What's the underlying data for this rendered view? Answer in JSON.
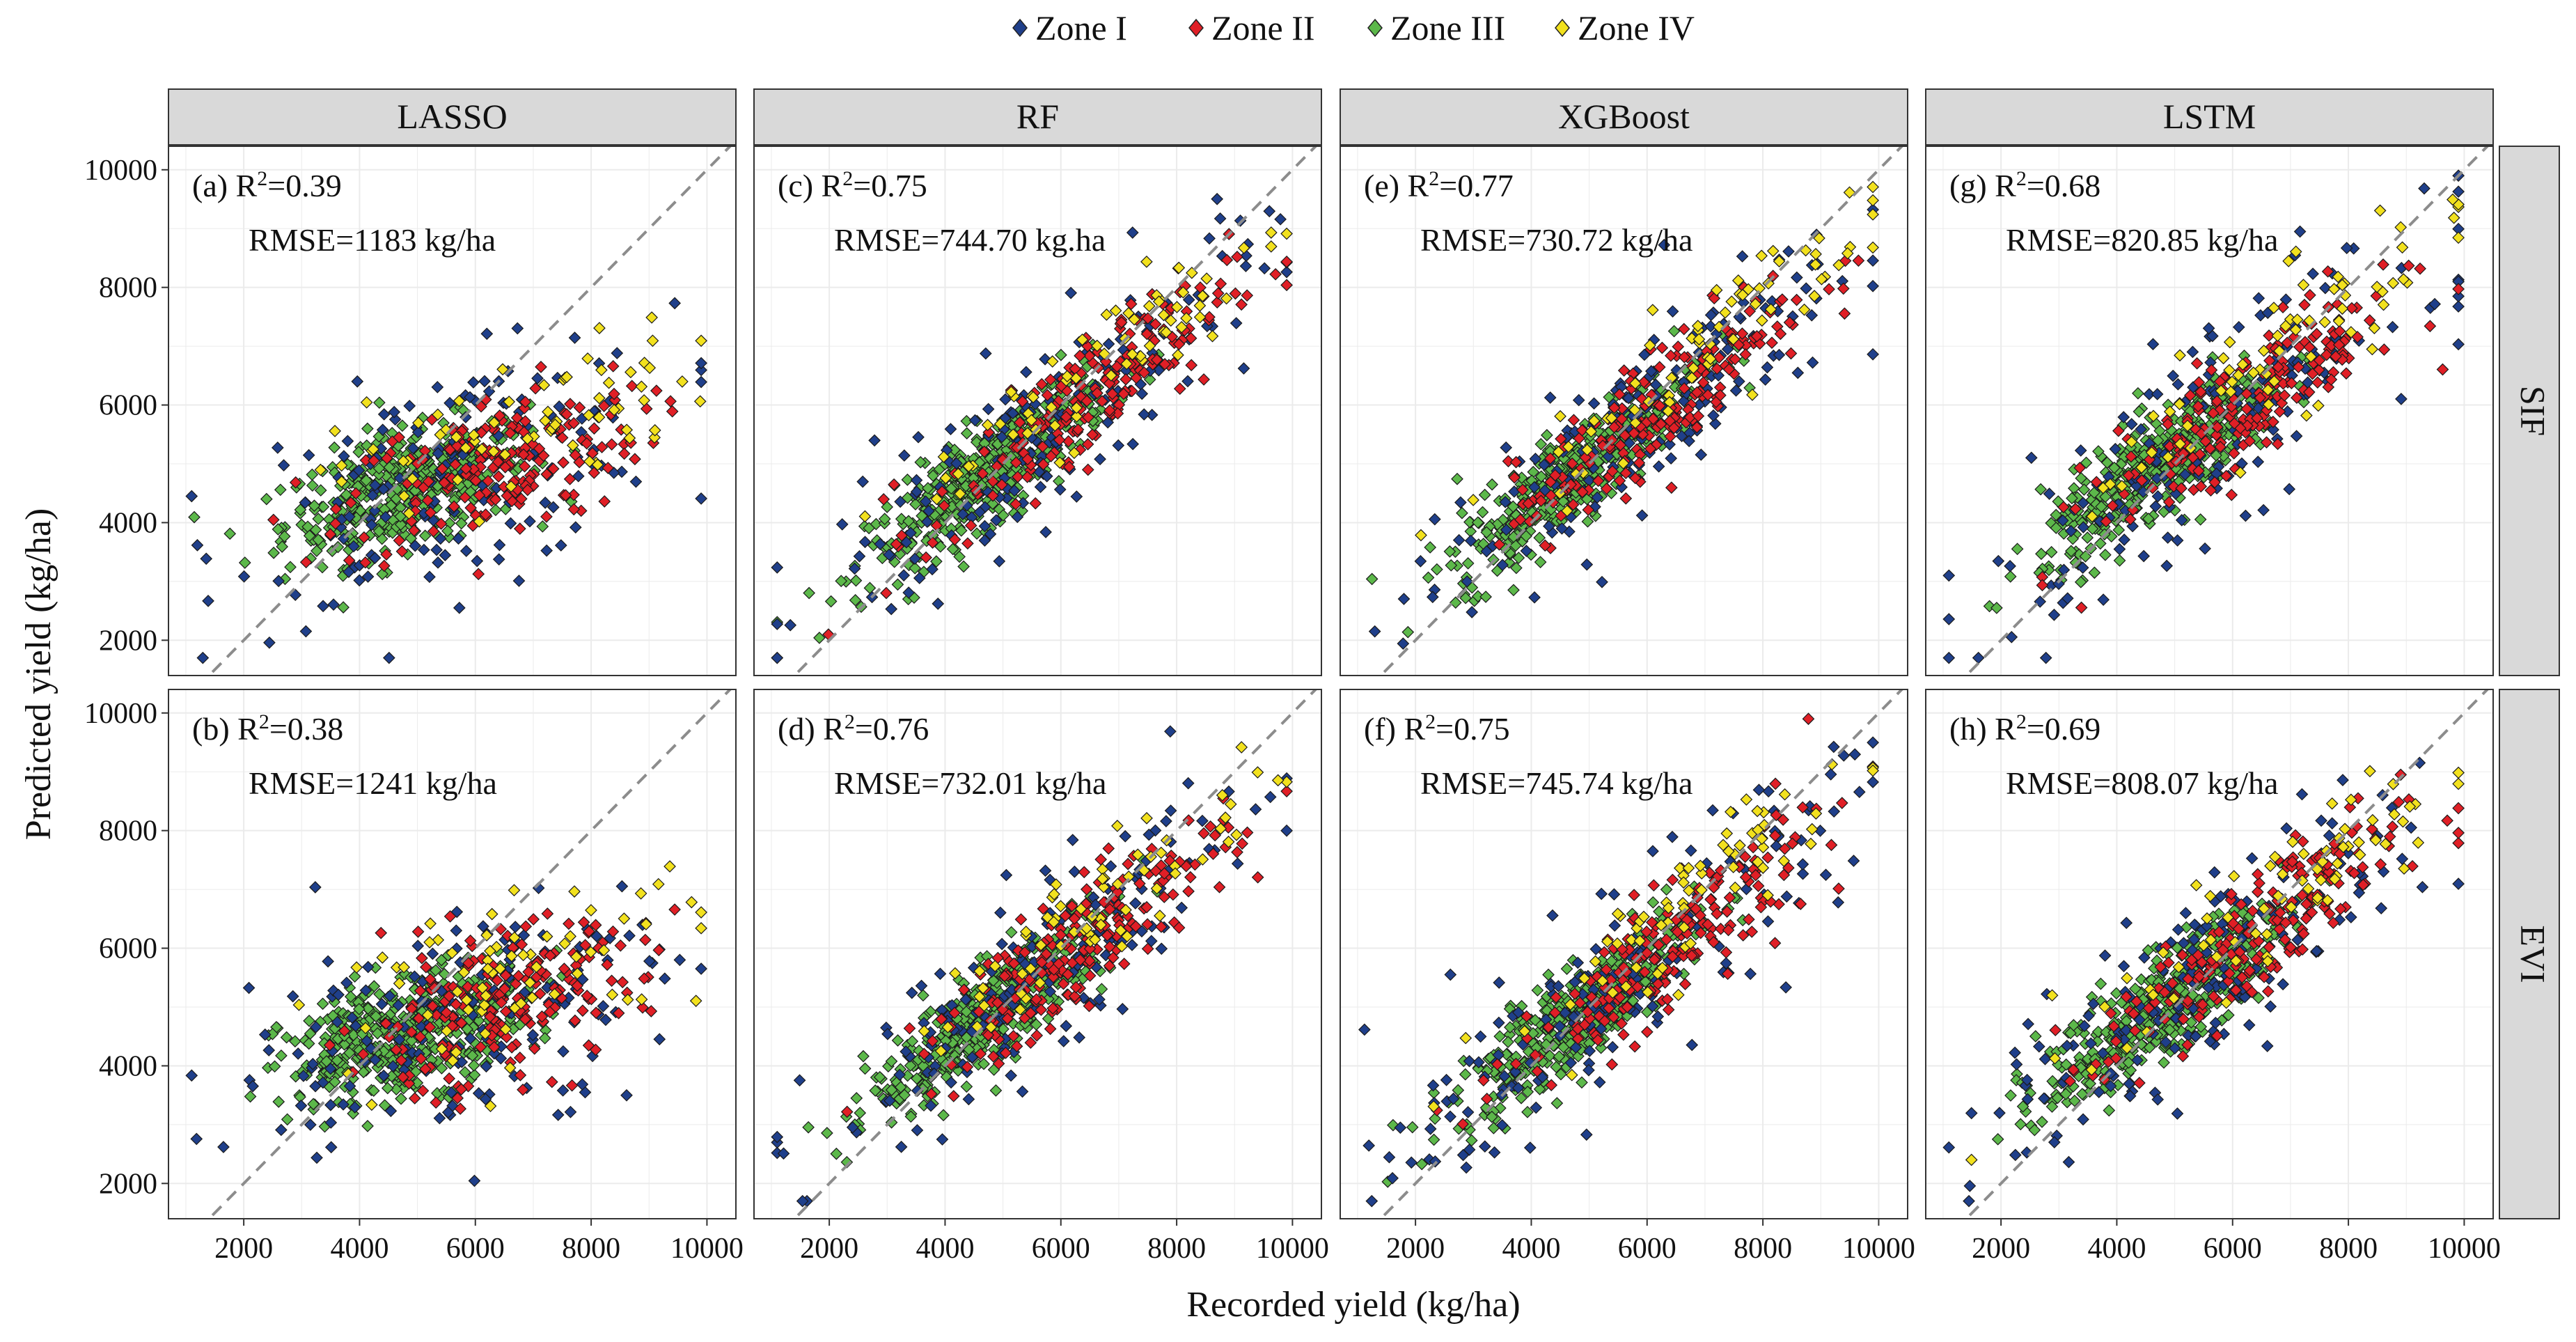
{
  "chart_data": {
    "type": "scatter",
    "legend": {
      "position": "top",
      "entries": [
        {
          "label": "Zone I",
          "color": "#1f3f8a"
        },
        {
          "label": "Zone II",
          "color": "#e01f26"
        },
        {
          "label": "Zone III",
          "color": "#5cb84a"
        },
        {
          "label": "Zone IV",
          "color": "#f2e11e"
        }
      ]
    },
    "xlabel": "Recorded  yield (kg/ha)",
    "ylabel": "Predicted yield (kg/ha)",
    "xlim": [
      700,
      10500
    ],
    "ylim": [
      1400,
      10400
    ],
    "x_ticks": [
      "2000",
      "4000",
      "6000",
      "8000",
      "10000"
    ],
    "y_ticks": [
      "2000",
      "4000",
      "6000",
      "8000",
      "10000"
    ],
    "reference_line": "1:1 dashed",
    "columns": [
      "LASSO",
      "RF",
      "XGBoost",
      "LSTM"
    ],
    "rows": [
      "SIF",
      "EVI"
    ],
    "panels": [
      {
        "id": "a",
        "model": "LASSO",
        "index": "SIF",
        "tag": "(a)",
        "r2": "0.39",
        "rmse": "RMSE=1183 kg/ha",
        "slope": 0.28,
        "intercept": 3200,
        "noise": 620
      },
      {
        "id": "c",
        "model": "RF",
        "index": "SIF",
        "tag": "(c)",
        "r2": "0.75",
        "rmse": "RMSE=744.70 kg.ha",
        "slope": 0.72,
        "intercept": 1450,
        "noise": 520
      },
      {
        "id": "e",
        "model": "XGBoost",
        "index": "SIF",
        "tag": "(e)",
        "r2": "0.77",
        "rmse": "RMSE=730.72 kg/ha",
        "slope": 0.76,
        "intercept": 1250,
        "noise": 500
      },
      {
        "id": "g",
        "model": "LSTM",
        "index": "SIF",
        "tag": "(g)",
        "r2": "0.68",
        "rmse": "RMSE=820.85 kg/ha",
        "slope": 0.68,
        "intercept": 1750,
        "noise": 560
      },
      {
        "id": "b",
        "model": "LASSO",
        "index": "EVI",
        "tag": "(b)",
        "r2": "0.38",
        "rmse": "RMSE=1241 kg/ha",
        "slope": 0.27,
        "intercept": 3250,
        "noise": 640
      },
      {
        "id": "d",
        "model": "RF",
        "index": "EVI",
        "tag": "(d)",
        "r2": "0.76",
        "rmse": "RMSE=732.01 kg/ha",
        "slope": 0.73,
        "intercept": 1400,
        "noise": 510
      },
      {
        "id": "f",
        "model": "XGBoost",
        "index": "EVI",
        "tag": "(f)",
        "r2": "0.75",
        "rmse": "RMSE=745.74 kg/ha",
        "slope": 0.74,
        "intercept": 1300,
        "noise": 520
      },
      {
        "id": "h",
        "model": "LSTM",
        "index": "EVI",
        "tag": "(h)",
        "r2": "0.69",
        "rmse": "RMSE=808.07 kg/ha",
        "slope": 0.69,
        "intercept": 1700,
        "noise": 550
      }
    ]
  }
}
